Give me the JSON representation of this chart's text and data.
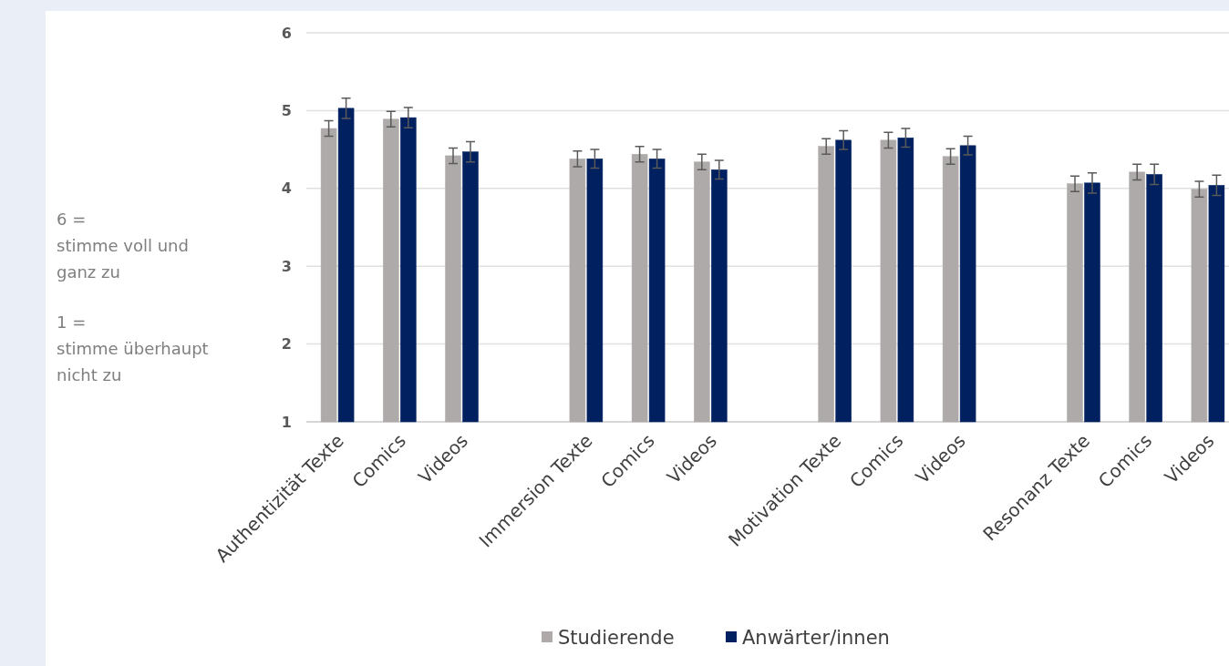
{
  "chart_data": {
    "type": "bar",
    "categories": [
      "Authentizität Texte",
      "Comics",
      "Videos",
      null,
      "Immersion Texte",
      "Comics",
      "Videos",
      null,
      "Motivation Texte",
      "Comics",
      "Videos",
      null,
      "Resonanz Texte",
      "Comics",
      "Videos"
    ],
    "series": [
      {
        "name": "Studierende",
        "color": "#aeaaaa",
        "values": [
          4.77,
          4.89,
          4.42,
          null,
          4.38,
          4.44,
          4.34,
          null,
          4.54,
          4.62,
          4.41,
          null,
          4.06,
          4.21,
          3.99
        ],
        "errors": [
          0.1,
          0.1,
          0.1,
          null,
          0.1,
          0.1,
          0.1,
          null,
          0.1,
          0.1,
          0.1,
          null,
          0.1,
          0.1,
          0.1
        ]
      },
      {
        "name": "Anwärter/innen",
        "color": "#002060",
        "values": [
          5.03,
          4.91,
          4.47,
          null,
          4.38,
          4.38,
          4.24,
          null,
          4.62,
          4.65,
          4.55,
          null,
          4.07,
          4.18,
          4.04
        ],
        "errors": [
          0.13,
          0.13,
          0.13,
          null,
          0.12,
          0.12,
          0.12,
          null,
          0.12,
          0.12,
          0.12,
          null,
          0.13,
          0.13,
          0.13
        ]
      }
    ],
    "ylim": [
      1,
      6
    ],
    "yticks": [
      1,
      2,
      3,
      4,
      5,
      6
    ],
    "grid": "y",
    "legend": "bottom",
    "annotations": [
      "6 =\nstimme voll und\nganz zu",
      "1 =\nstimme überhaupt\nnicht zu"
    ]
  }
}
